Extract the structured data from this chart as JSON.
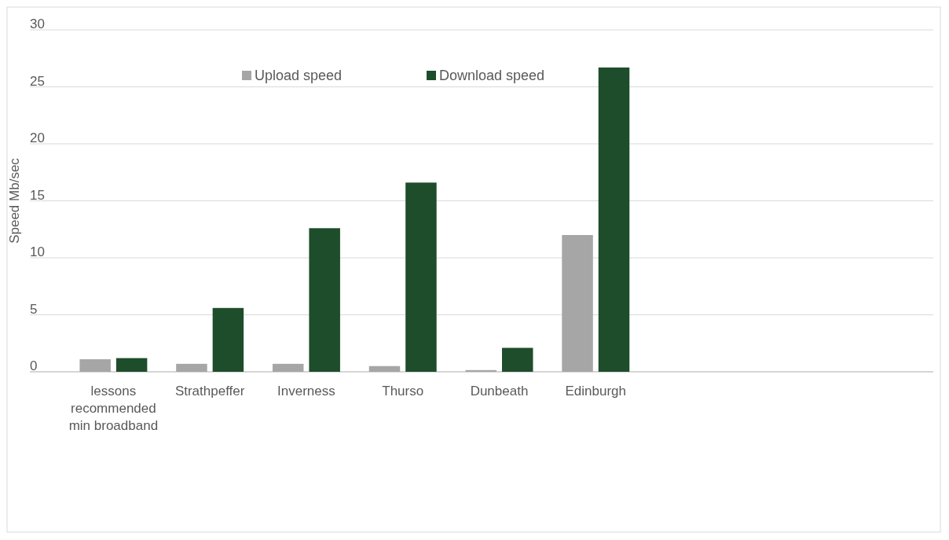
{
  "chart_data": {
    "type": "bar",
    "ylabel": "Speed Mb/sec",
    "categories": [
      "lessons recommended min broadband",
      "Strathpeffer",
      "Inverness",
      "Thurso",
      "Dunbeath",
      "Edinburgh",
      null,
      null,
      null
    ],
    "series": [
      {
        "name": "Upload speed",
        "color": "#a6a6a6",
        "values": [
          1.1,
          0.7,
          0.7,
          0.5,
          0.15,
          12.0,
          null,
          null,
          null
        ]
      },
      {
        "name": "Download speed",
        "color": "#1e4d2b",
        "values": [
          1.2,
          5.6,
          12.6,
          16.6,
          2.1,
          26.7,
          null,
          null,
          null
        ]
      }
    ],
    "ylim": [
      0,
      30
    ],
    "yticks": [
      0,
      5,
      10,
      15,
      20,
      25,
      30
    ],
    "grid": "y",
    "legend": "top"
  }
}
